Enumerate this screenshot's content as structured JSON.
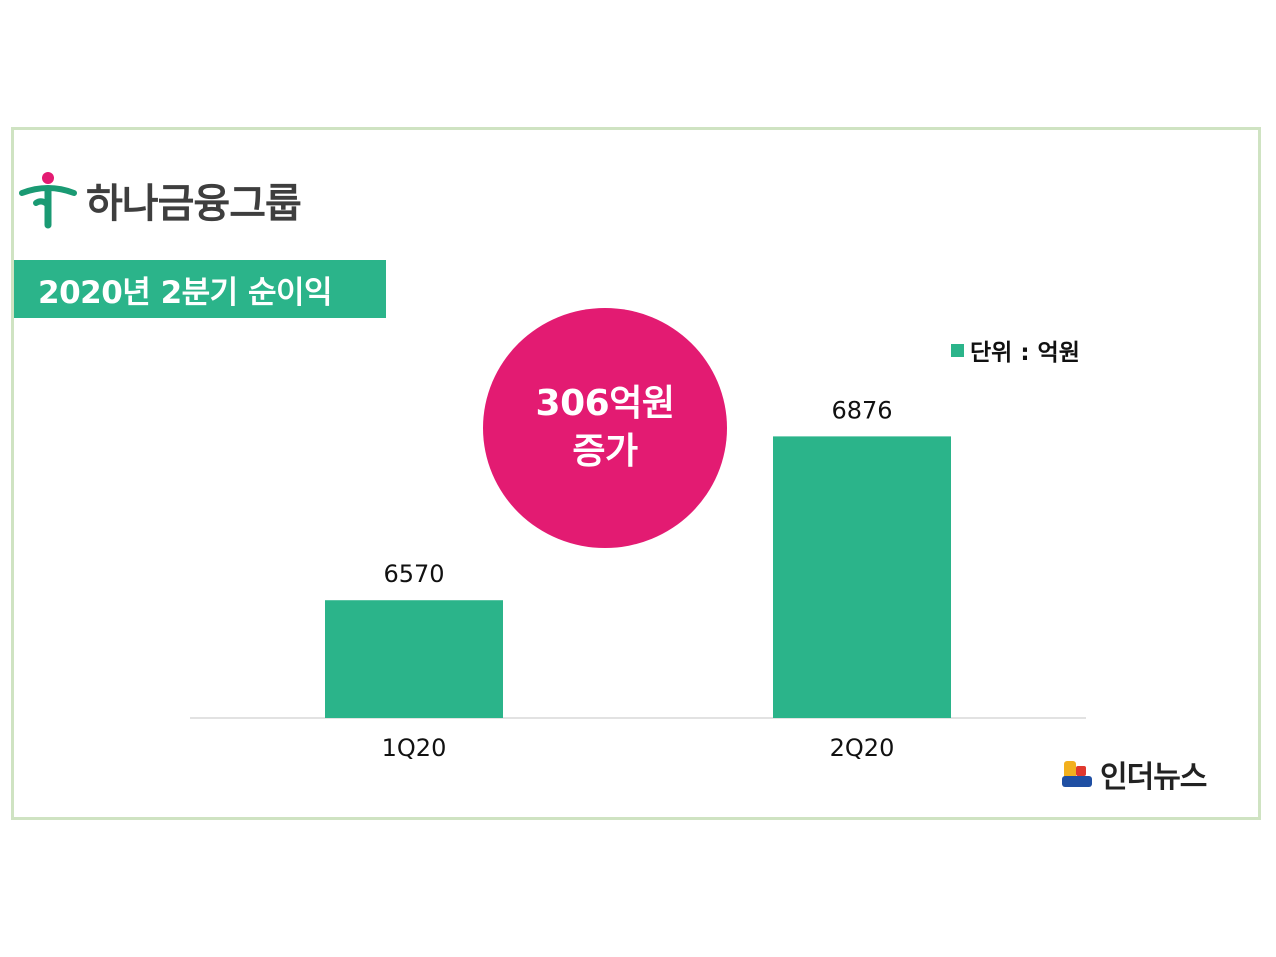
{
  "brand": {
    "name": "하나금융그룹"
  },
  "title": "2020년 2분기 순이익",
  "callout": {
    "line1": "306억원",
    "line2": "증가",
    "color": "#e31b72"
  },
  "legend": {
    "label": "단위 : 억원"
  },
  "source": {
    "name": "인더뉴스"
  },
  "colors": {
    "bar": "#2bb48a",
    "frame": "#cfe3c2"
  },
  "chart_data": {
    "type": "bar",
    "categories": [
      "1Q20",
      "2Q20"
    ],
    "values": [
      6570,
      6876
    ],
    "data_labels": [
      "6570",
      "6876"
    ],
    "unit": "억원",
    "ylim": [
      6350,
      7000
    ],
    "grid": false
  }
}
